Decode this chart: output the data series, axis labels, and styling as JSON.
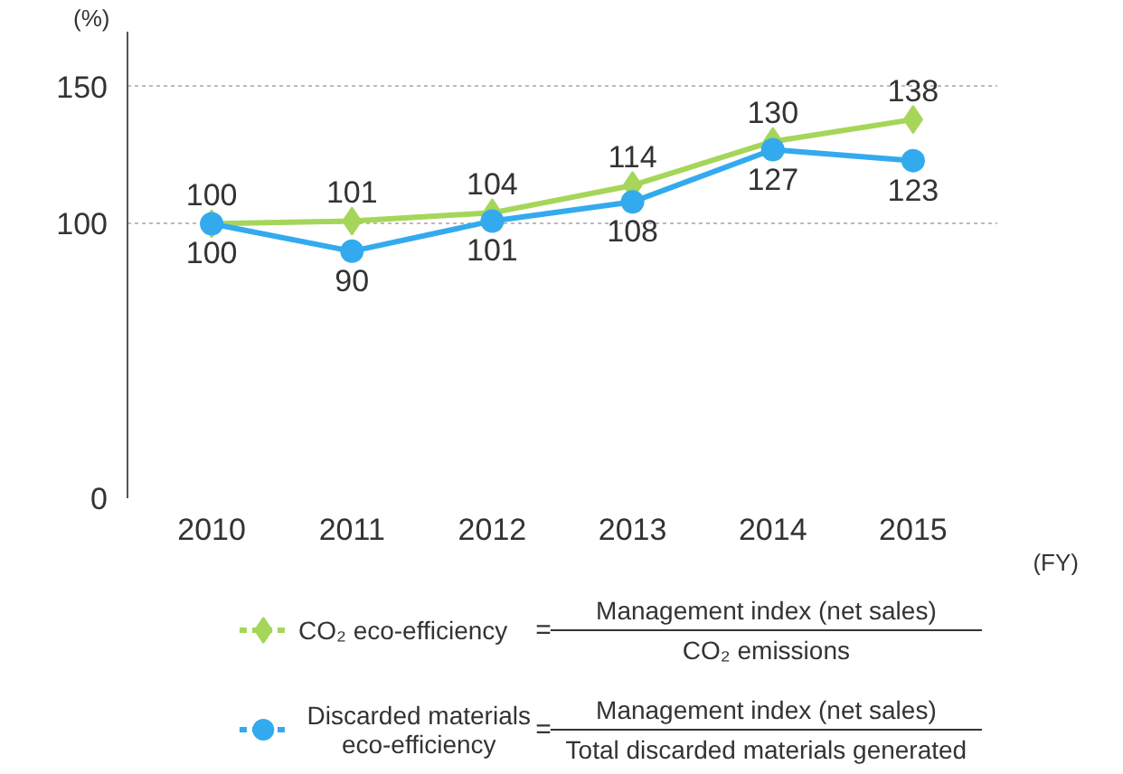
{
  "chart_data": {
    "type": "line",
    "categories": [
      "2010",
      "2011",
      "2012",
      "2013",
      "2014",
      "2015"
    ],
    "ylabel": "(%)",
    "xlabel": "(FY)",
    "ylim": [
      0,
      170
    ],
    "yticks": [
      0,
      100,
      150
    ],
    "grid": "y",
    "legend": "bottom",
    "data_labels": true,
    "series": [
      {
        "name": "CO₂ eco-efficiency",
        "color": "#a5d65a",
        "marker": "diamond",
        "values": [
          100,
          101,
          104,
          114,
          130,
          138
        ]
      },
      {
        "name": "Discarded materials eco-efficiency",
        "color": "#33aaee",
        "marker": "circle",
        "values": [
          100,
          90,
          101,
          108,
          127,
          123
        ]
      }
    ],
    "annotations": [
      "=",
      "Management index (net sales)",
      "CO₂ emissions",
      "=",
      "Management index (net sales)",
      "Total discarded materials generated"
    ]
  }
}
